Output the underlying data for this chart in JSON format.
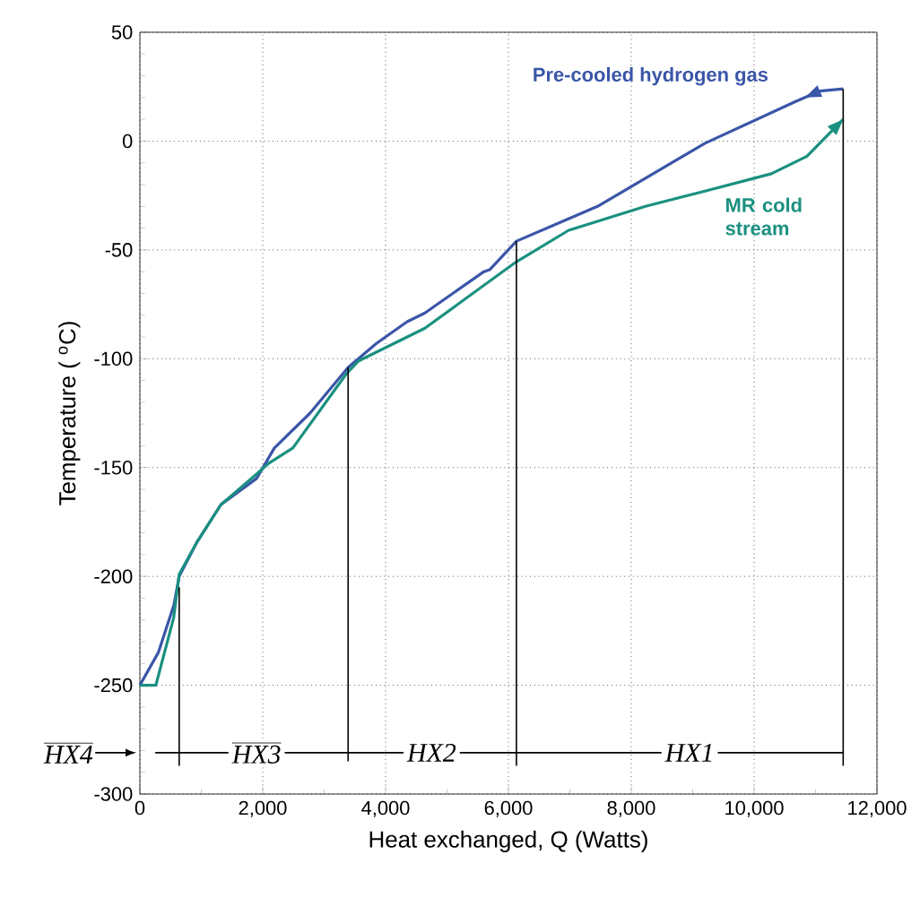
{
  "chart_data": {
    "type": "line",
    "xlabel": "Heat exchanged, Q (Watts)",
    "ylabel": "Temperature ( $^{o}$C)",
    "xlim": [
      0,
      12000
    ],
    "ylim": [
      -300,
      50
    ],
    "xticks": [
      {
        "value": 0,
        "label": "0"
      },
      {
        "value": 2000,
        "label": "2,000"
      },
      {
        "value": 4000,
        "label": "4,000"
      },
      {
        "value": 6000,
        "label": "6,000"
      },
      {
        "value": 8000,
        "label": "8,000"
      },
      {
        "value": 10000,
        "label": "10,000"
      },
      {
        "value": 12000,
        "label": "12,000"
      }
    ],
    "yticks": [
      -300,
      -250,
      -200,
      -150,
      -100,
      -50,
      0,
      50
    ],
    "grid": true,
    "marker": "none",
    "line_style": "solid",
    "series": [
      {
        "name": "Pre-cooled hydrogen gas",
        "color": "#3a56a8",
        "x": [
          0,
          300,
          555,
          640,
          934,
          1320,
          1900,
          2190,
          2770,
          3390,
          3850,
          4350,
          4640,
          5600,
          5700,
          6130,
          7450,
          9200,
          10660,
          11070,
          11450
        ],
        "values": [
          -250,
          -235,
          -213,
          -200,
          -184,
          -167,
          -155,
          -141,
          -125,
          -104,
          -93,
          -83,
          -79,
          -60,
          -59,
          -46,
          -30,
          -1,
          18,
          23,
          24
        ]
      },
      {
        "name": "MR cold stream",
        "color": "#1a9080",
        "x": [
          0,
          260,
          550,
          640,
          934,
          1320,
          1900,
          2100,
          2490,
          3360,
          3560,
          4640,
          6100,
          6980,
          8230,
          9200,
          10280,
          10860,
          11450
        ],
        "values": [
          -250,
          -250,
          -219,
          -199,
          -184,
          -167,
          -153,
          -148,
          -141,
          -107,
          -101,
          -86,
          -56,
          -41,
          -30,
          -23,
          -15,
          -7,
          10
        ]
      },
      {
        "color": "#000000",
        "x": [
          640,
          640
        ],
        "values": [
          -205,
          -287
        ]
      },
      {
        "color": "#000000",
        "x": [
          3390,
          3390
        ],
        "values": [
          -104,
          -285
        ]
      },
      {
        "color": "#000000",
        "x": [
          6130,
          6130
        ],
        "values": [
          -46,
          -287
        ]
      },
      {
        "color": "#000000",
        "x": [
          11450,
          11450
        ],
        "values": [
          24,
          -287
        ]
      },
      {
        "color": "#000000",
        "x": [
          250,
          11450
        ],
        "values": [
          -281,
          -281
        ]
      }
    ],
    "annotations": [
      "HX4",
      {
        "text": "HX3",
        "x": 1900,
        "y": -281
      },
      {
        "text": "HX2",
        "x": 4750,
        "y": -281
      },
      {
        "text": "HX1",
        "x": 8950,
        "y": -281
      }
    ]
  }
}
